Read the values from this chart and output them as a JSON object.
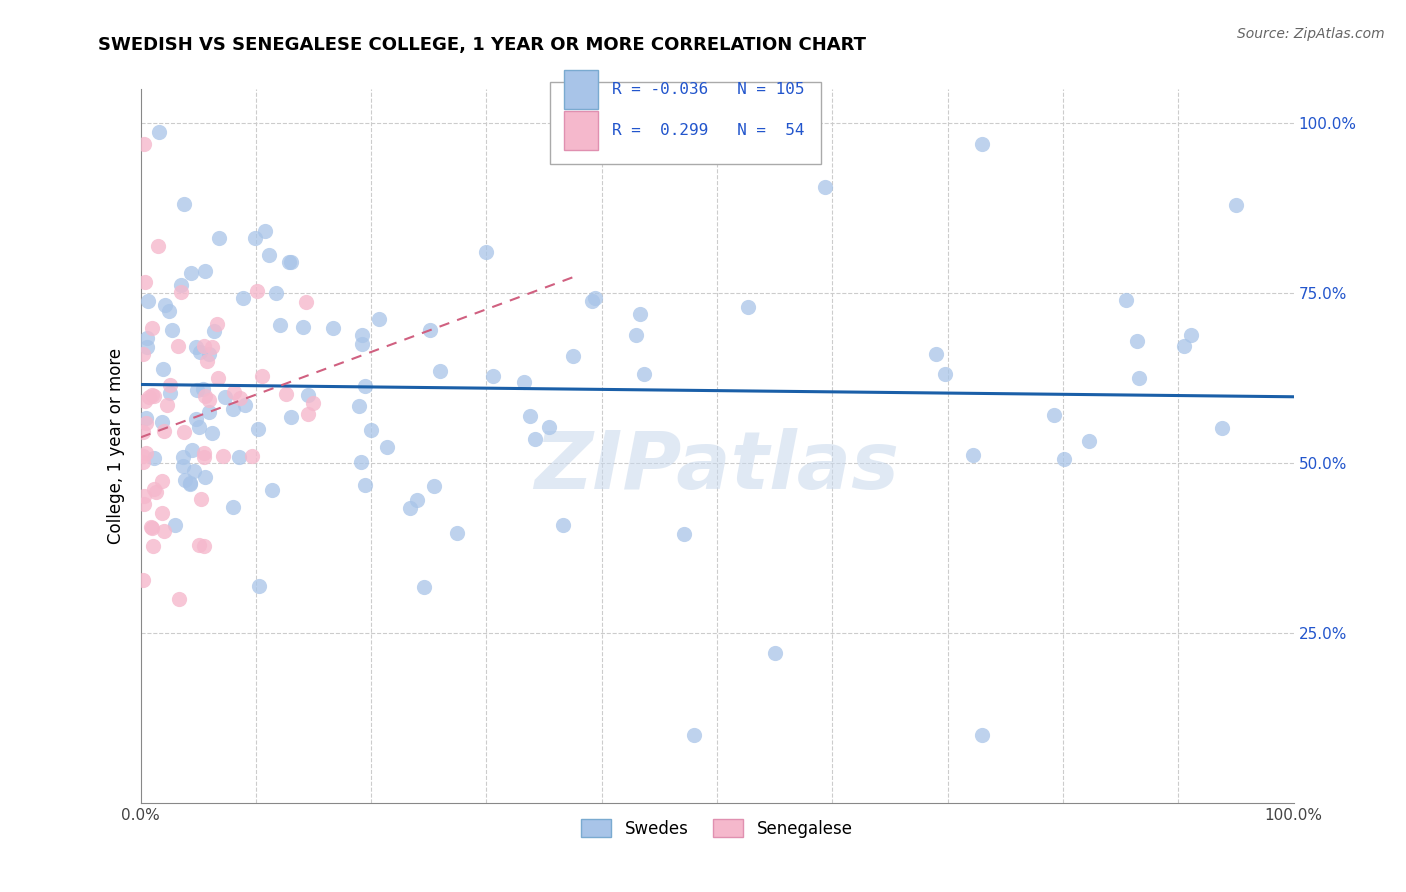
{
  "title": "SWEDISH VS SENEGALESE COLLEGE, 1 YEAR OR MORE CORRELATION CHART",
  "source": "Source: ZipAtlas.com",
  "ylabel": "College, 1 year or more",
  "sw_color": "#a8c4e8",
  "sn_color": "#f5b8cc",
  "trend_sw_color": "#1a5fa8",
  "trend_sn_color": "#d06080",
  "watermark": "ZIPatlas",
  "legend_sw_r": "R = -0.036",
  "legend_sw_n": "N = 105",
  "legend_sn_r": "R =  0.299",
  "legend_sn_n": "N =  54",
  "ytick_vals": [
    0.25,
    0.5,
    0.75,
    1.0
  ],
  "xmin": 0.0,
  "xmax": 1.0,
  "ymin": 0.0,
  "ymax": 1.05
}
